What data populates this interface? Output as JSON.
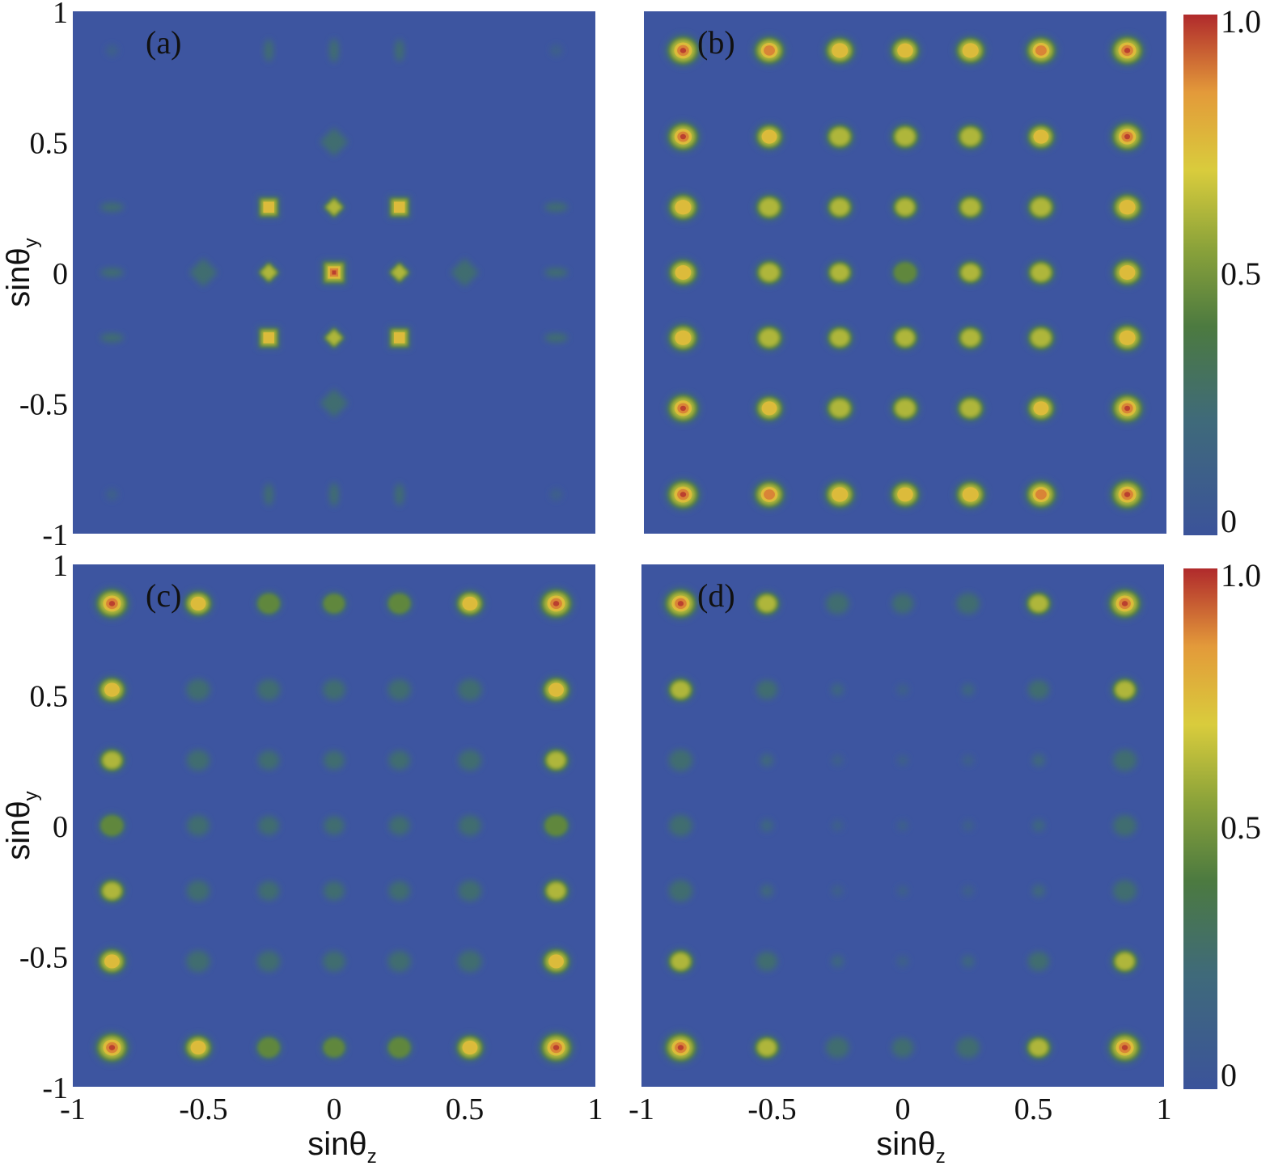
{
  "chart_data": {
    "type": "heatmap",
    "x_axis_label": "sinθz",
    "y_axis_label": "sinθy",
    "xlim": [
      -1,
      1
    ],
    "ylim": [
      -1,
      1
    ],
    "x_ticks": [
      "-1",
      "-0.5",
      "0",
      "0.5",
      "1"
    ],
    "y_ticks": [
      "1",
      "0.5",
      "0",
      "-0.5",
      "-1"
    ],
    "colorbar": {
      "range": [
        0,
        1
      ],
      "tick_labels": [
        "1.0",
        "0.5",
        "0"
      ],
      "colors": [
        "#3b539a",
        "#4c7a4c",
        "#d9cc3c",
        "#e39a3a",
        "#b02a2c"
      ]
    },
    "background_color": "#3d55a0",
    "panels": [
      {
        "label": "(a)",
        "spots": [
          {
            "x": -0.85,
            "y": 0.85,
            "i": 0.12,
            "s": "blob"
          },
          {
            "x": -0.25,
            "y": 0.85,
            "i": 0.3,
            "s": "vbar"
          },
          {
            "x": 0.0,
            "y": 0.85,
            "i": 0.35,
            "s": "vbar"
          },
          {
            "x": 0.25,
            "y": 0.85,
            "i": 0.3,
            "s": "vbar"
          },
          {
            "x": 0.85,
            "y": 0.85,
            "i": 0.12,
            "s": "blob"
          },
          {
            "x": 0.0,
            "y": 0.5,
            "i": 0.35,
            "s": "diamond"
          },
          {
            "x": -0.85,
            "y": 0.25,
            "i": 0.3,
            "s": "hbar"
          },
          {
            "x": -0.25,
            "y": 0.25,
            "i": 0.75,
            "s": "square"
          },
          {
            "x": 0.0,
            "y": 0.25,
            "i": 0.7,
            "s": "dsmall"
          },
          {
            "x": 0.25,
            "y": 0.25,
            "i": 0.75,
            "s": "square"
          },
          {
            "x": 0.85,
            "y": 0.25,
            "i": 0.3,
            "s": "hbar"
          },
          {
            "x": -0.85,
            "y": 0.0,
            "i": 0.3,
            "s": "hbar"
          },
          {
            "x": -0.5,
            "y": 0.0,
            "i": 0.35,
            "s": "diamond"
          },
          {
            "x": -0.25,
            "y": 0.0,
            "i": 0.7,
            "s": "dsmall"
          },
          {
            "x": 0.0,
            "y": 0.0,
            "i": 0.95,
            "s": "square"
          },
          {
            "x": 0.25,
            "y": 0.0,
            "i": 0.7,
            "s": "dsmall"
          },
          {
            "x": 0.5,
            "y": 0.0,
            "i": 0.35,
            "s": "diamond"
          },
          {
            "x": 0.85,
            "y": 0.0,
            "i": 0.3,
            "s": "hbar"
          },
          {
            "x": -0.85,
            "y": -0.25,
            "i": 0.3,
            "s": "hbar"
          },
          {
            "x": -0.25,
            "y": -0.25,
            "i": 0.75,
            "s": "square"
          },
          {
            "x": 0.0,
            "y": -0.25,
            "i": 0.7,
            "s": "dsmall"
          },
          {
            "x": 0.25,
            "y": -0.25,
            "i": 0.75,
            "s": "square"
          },
          {
            "x": 0.85,
            "y": -0.25,
            "i": 0.3,
            "s": "hbar"
          },
          {
            "x": 0.0,
            "y": -0.5,
            "i": 0.35,
            "s": "diamond"
          },
          {
            "x": -0.85,
            "y": -0.85,
            "i": 0.12,
            "s": "blob"
          },
          {
            "x": -0.25,
            "y": -0.85,
            "i": 0.3,
            "s": "vbar"
          },
          {
            "x": 0.0,
            "y": -0.85,
            "i": 0.35,
            "s": "vbar"
          },
          {
            "x": 0.25,
            "y": -0.85,
            "i": 0.3,
            "s": "vbar"
          },
          {
            "x": 0.85,
            "y": -0.85,
            "i": 0.12,
            "s": "blob"
          }
        ]
      },
      {
        "label": "(b)",
        "grid": {
          "x": [
            -0.85,
            -0.52,
            -0.25,
            0.0,
            0.25,
            0.52,
            0.85
          ],
          "y": [
            0.85,
            0.52,
            0.25,
            0.0,
            -0.25,
            -0.52,
            -0.85
          ],
          "intensity": [
            [
              1.0,
              0.9,
              0.85,
              0.8,
              0.85,
              0.9,
              1.0
            ],
            [
              0.95,
              0.75,
              0.7,
              0.7,
              0.7,
              0.75,
              0.95
            ],
            [
              0.85,
              0.7,
              0.62,
              0.6,
              0.62,
              0.7,
              0.85
            ],
            [
              0.82,
              0.68,
              0.6,
              0.58,
              0.6,
              0.68,
              0.82
            ],
            [
              0.85,
              0.7,
              0.62,
              0.6,
              0.62,
              0.7,
              0.85
            ],
            [
              0.95,
              0.75,
              0.7,
              0.7,
              0.7,
              0.75,
              0.95
            ],
            [
              1.0,
              0.9,
              0.85,
              0.8,
              0.85,
              0.9,
              1.0
            ]
          ]
        }
      },
      {
        "label": "(c)",
        "grid": {
          "x": [
            -0.85,
            -0.52,
            -0.25,
            0.0,
            0.25,
            0.52,
            0.85
          ],
          "y": [
            0.85,
            0.52,
            0.25,
            0.0,
            -0.25,
            -0.52,
            -0.85
          ],
          "intensity": [
            [
              1.0,
              0.75,
              0.55,
              0.5,
              0.55,
              0.75,
              1.0
            ],
            [
              0.75,
              0.42,
              0.38,
              0.36,
              0.38,
              0.42,
              0.75
            ],
            [
              0.6,
              0.38,
              0.3,
              0.28,
              0.3,
              0.38,
              0.6
            ],
            [
              0.58,
              0.36,
              0.28,
              0.26,
              0.28,
              0.36,
              0.58
            ],
            [
              0.6,
              0.38,
              0.3,
              0.28,
              0.3,
              0.38,
              0.6
            ],
            [
              0.75,
              0.42,
              0.38,
              0.36,
              0.38,
              0.42,
              0.75
            ],
            [
              1.0,
              0.75,
              0.55,
              0.5,
              0.55,
              0.75,
              1.0
            ]
          ]
        }
      },
      {
        "label": "(d)",
        "grid": {
          "x": [
            -0.85,
            -0.52,
            -0.25,
            0.0,
            0.25,
            0.52,
            0.85
          ],
          "y": [
            0.85,
            0.52,
            0.25,
            0.0,
            -0.25,
            -0.52,
            -0.85
          ],
          "intensity": [
            [
              1.0,
              0.6,
              0.4,
              0.32,
              0.4,
              0.6,
              1.0
            ],
            [
              0.62,
              0.3,
              0.18,
              0.12,
              0.18,
              0.3,
              0.62
            ],
            [
              0.42,
              0.2,
              0.08,
              0.05,
              0.08,
              0.2,
              0.42
            ],
            [
              0.4,
              0.18,
              0.06,
              0.04,
              0.06,
              0.18,
              0.4
            ],
            [
              0.42,
              0.2,
              0.08,
              0.05,
              0.08,
              0.2,
              0.42
            ],
            [
              0.62,
              0.3,
              0.18,
              0.12,
              0.18,
              0.3,
              0.62
            ],
            [
              1.0,
              0.6,
              0.4,
              0.32,
              0.4,
              0.6,
              1.0
            ]
          ]
        }
      }
    ]
  }
}
